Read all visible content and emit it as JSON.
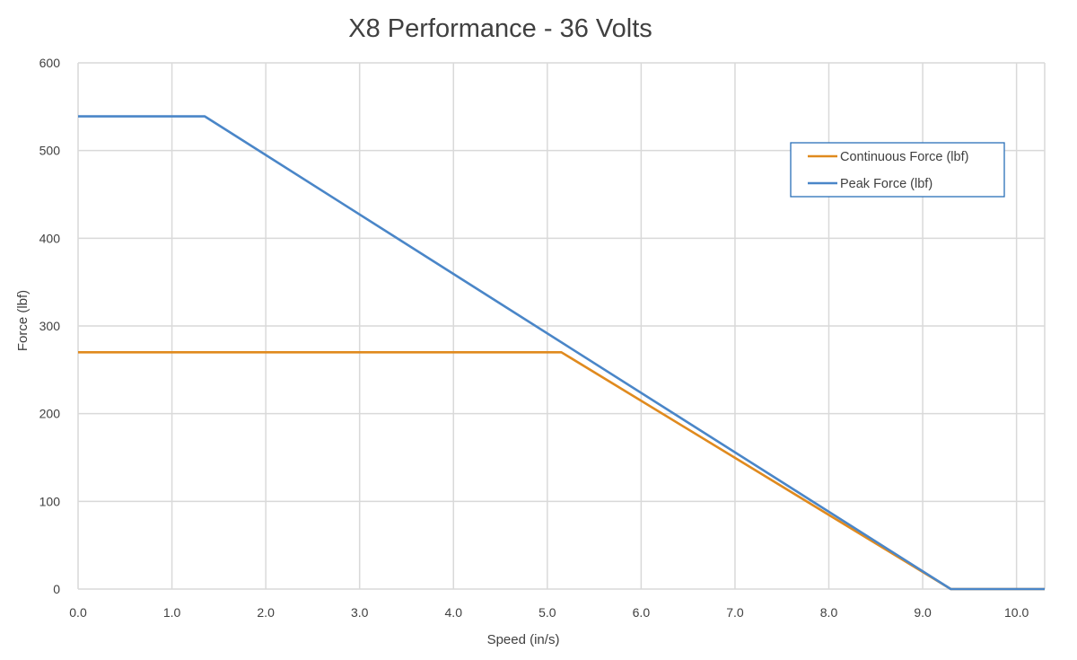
{
  "chart_data": {
    "type": "line",
    "title": "X8 Performance - 36 Volts",
    "xlabel": "Speed (in/s)",
    "ylabel": "Force (lbf)",
    "xlim": [
      0,
      10.3
    ],
    "ylim": [
      0,
      600
    ],
    "x_ticks": [
      "0.0",
      "1.0",
      "2.0",
      "3.0",
      "4.0",
      "5.0",
      "6.0",
      "7.0",
      "8.0",
      "9.0",
      "10.0"
    ],
    "y_ticks": [
      "0",
      "100",
      "200",
      "300",
      "400",
      "500",
      "600"
    ],
    "grid": true,
    "legend_position": "top-right",
    "series": [
      {
        "name": "Continuous Force (lbf)",
        "color": "#E08A1E",
        "points": [
          [
            0,
            270
          ],
          [
            5.15,
            270
          ],
          [
            9.3,
            0
          ],
          [
            10.3,
            0
          ]
        ]
      },
      {
        "name": "Peak Force (lbf)",
        "color": "#4A86C8",
        "points": [
          [
            0,
            539
          ],
          [
            1.35,
            539
          ],
          [
            9.3,
            0
          ],
          [
            10.3,
            0
          ]
        ]
      }
    ]
  }
}
